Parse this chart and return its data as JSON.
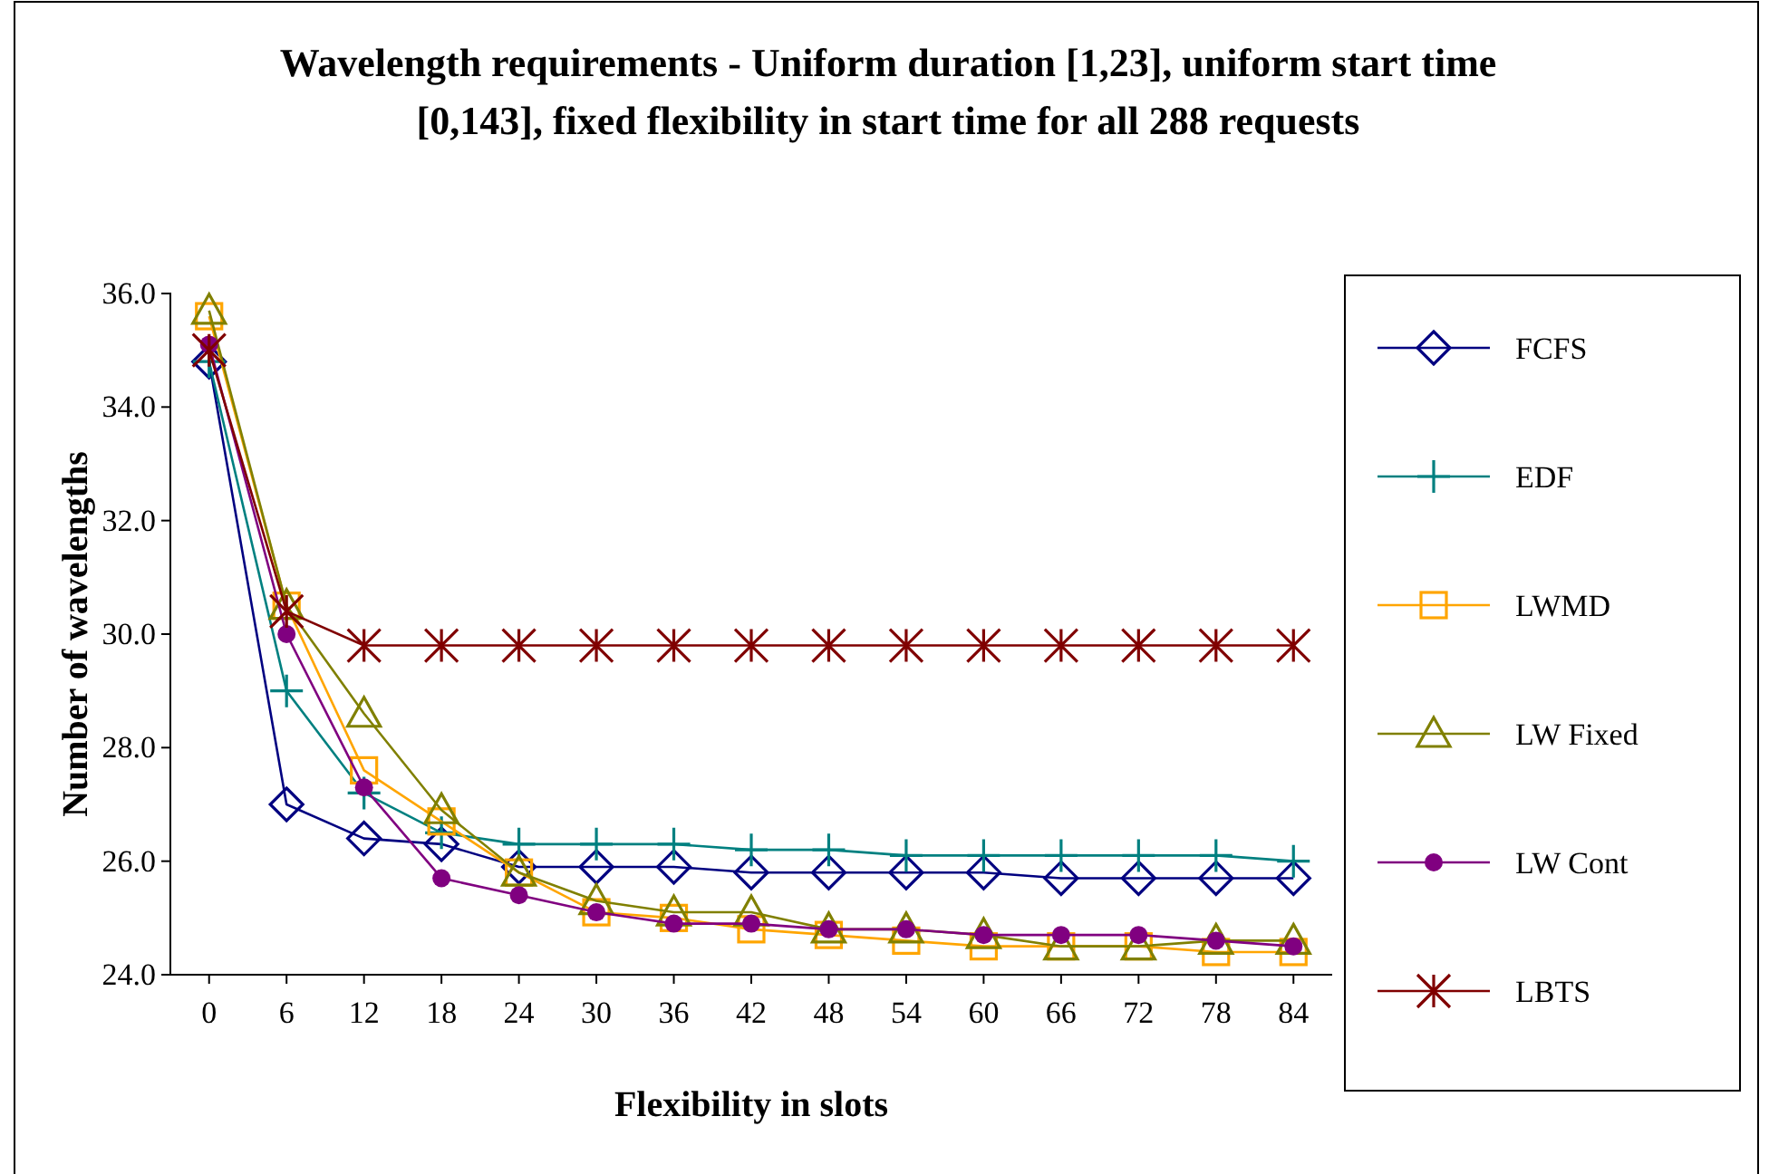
{
  "chart_data": {
    "type": "line",
    "title": "Wavelength requirements - Uniform duration [1,23], uniform start time [0,143], fixed flexibility in start time for all 288 requests",
    "xlabel": "Flexibility in slots",
    "ylabel": "Number of wavelengths",
    "categories": [
      "0",
      "6",
      "12",
      "18",
      "24",
      "30",
      "36",
      "42",
      "48",
      "54",
      "60",
      "66",
      "72",
      "78",
      "84"
    ],
    "ylim": [
      24,
      36
    ],
    "yticks": [
      {
        "value": 24,
        "label": "24.0"
      },
      {
        "value": 26,
        "label": "26.0"
      },
      {
        "value": 28,
        "label": "28.0"
      },
      {
        "value": 30,
        "label": "30.0"
      },
      {
        "value": 32,
        "label": "32.0"
      },
      {
        "value": 34,
        "label": "34.0"
      },
      {
        "value": 36,
        "label": "36.0"
      }
    ],
    "grid": false,
    "legend": "right",
    "series": [
      {
        "name": "FCFS",
        "color": "#000080",
        "marker": "diamond",
        "values": [
          34.8,
          27.0,
          26.4,
          26.3,
          25.9,
          25.9,
          25.9,
          25.8,
          25.8,
          25.8,
          25.8,
          25.7,
          25.7,
          25.7,
          25.7
        ]
      },
      {
        "name": "EDF",
        "color": "#008080",
        "marker": "cross",
        "values": [
          34.8,
          29.0,
          27.2,
          26.5,
          26.3,
          26.3,
          26.3,
          26.2,
          26.2,
          26.1,
          26.1,
          26.1,
          26.1,
          26.1,
          26.0
        ]
      },
      {
        "name": "LWMD",
        "color": "#ffa500",
        "marker": "square",
        "values": [
          35.6,
          30.5,
          27.6,
          26.7,
          25.8,
          25.1,
          25.0,
          24.8,
          24.7,
          24.6,
          24.5,
          24.5,
          24.5,
          24.4,
          24.4
        ]
      },
      {
        "name": "LW Fixed",
        "color": "#808000",
        "marker": "triangle",
        "values": [
          35.7,
          30.5,
          28.6,
          26.9,
          25.8,
          25.3,
          25.1,
          25.1,
          24.8,
          24.8,
          24.7,
          24.5,
          24.5,
          24.6,
          24.6
        ]
      },
      {
        "name": "LW Cont",
        "color": "#800080",
        "marker": "circle",
        "values": [
          35.1,
          30.0,
          27.3,
          25.7,
          25.4,
          25.1,
          24.9,
          24.9,
          24.8,
          24.8,
          24.7,
          24.7,
          24.7,
          24.6,
          24.5
        ]
      },
      {
        "name": "LBTS",
        "color": "#800000",
        "marker": "cross",
        "values": [
          35.0,
          30.4,
          29.8,
          29.8,
          29.8,
          29.8,
          29.8,
          29.8,
          29.8,
          29.8,
          29.8,
          29.8,
          29.8,
          29.8,
          29.8
        ]
      }
    ]
  }
}
